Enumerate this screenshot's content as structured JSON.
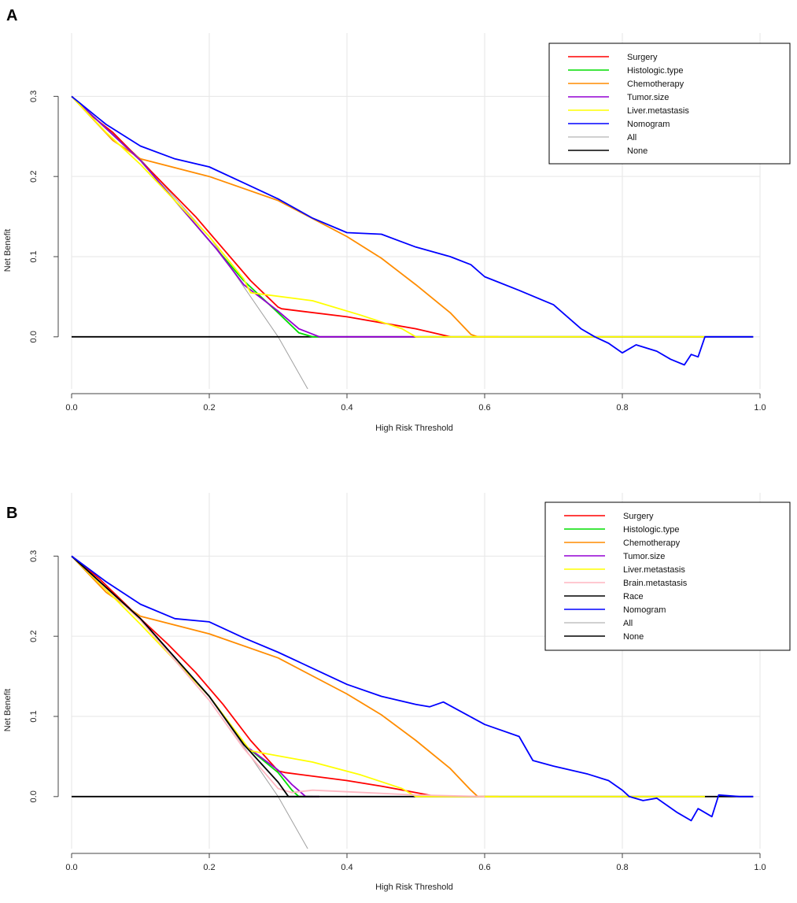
{
  "chart_data": [
    {
      "panel_label": "A",
      "type": "line",
      "title": "",
      "xlabel": "High Risk Threshold",
      "ylabel": "Net Benefit",
      "xlim": [
        0,
        1
      ],
      "ylim": [
        -0.065,
        0.32
      ],
      "x_ticks": [
        0.0,
        0.2,
        0.4,
        0.6,
        0.8,
        1.0
      ],
      "x_tick_labels": [
        "0.0",
        "0.2",
        "0.4",
        "0.6",
        "0.8",
        "1.0"
      ],
      "y_ticks": [
        0.0,
        0.1,
        0.2,
        0.3
      ],
      "y_tick_labels": [
        "0.0",
        "0.1",
        "0.2",
        "0.3"
      ],
      "grid": true,
      "legend_position": "top-right",
      "series": [
        {
          "name": "Surgery",
          "color": "#ff0000",
          "x": [
            0.0,
            0.03,
            0.06,
            0.1,
            0.14,
            0.18,
            0.22,
            0.26,
            0.3,
            0.305,
            0.4,
            0.5,
            0.55
          ],
          "y": [
            0.3,
            0.275,
            0.255,
            0.22,
            0.185,
            0.15,
            0.11,
            0.07,
            0.037,
            0.035,
            0.025,
            0.01,
            0.0
          ]
        },
        {
          "name": "Histologic.type",
          "color": "#00dd00",
          "x": [
            0.0,
            0.1,
            0.21,
            0.25,
            0.3,
            0.33,
            0.35,
            0.36
          ],
          "y": [
            0.3,
            0.22,
            0.11,
            0.07,
            0.03,
            0.005,
            0.0,
            0.0
          ]
        },
        {
          "name": "Chemotherapy",
          "color": "#ff8c00",
          "x": [
            0.0,
            0.06,
            0.1,
            0.2,
            0.3,
            0.4,
            0.45,
            0.5,
            0.55,
            0.58,
            0.59,
            0.62
          ],
          "y": [
            0.3,
            0.245,
            0.222,
            0.2,
            0.17,
            0.125,
            0.098,
            0.065,
            0.03,
            0.003,
            0.0,
            0.0
          ]
        },
        {
          "name": "Tumor.size",
          "color": "#9400d3",
          "x": [
            0.0,
            0.1,
            0.21,
            0.25,
            0.3,
            0.33,
            0.36,
            0.5
          ],
          "y": [
            0.3,
            0.22,
            0.11,
            0.065,
            0.032,
            0.01,
            0.0,
            0.0
          ]
        },
        {
          "name": "Liver.metastasis",
          "color": "#ffff00",
          "x": [
            0.0,
            0.05,
            0.1,
            0.15,
            0.2,
            0.25,
            0.26,
            0.35,
            0.42,
            0.48,
            0.5,
            0.6,
            0.7,
            0.8,
            0.92
          ],
          "y": [
            0.3,
            0.255,
            0.215,
            0.17,
            0.125,
            0.072,
            0.055,
            0.045,
            0.027,
            0.01,
            0.0,
            0.0,
            0.0,
            0.0,
            0.0
          ]
        },
        {
          "name": "Nomogram",
          "color": "#0000ff",
          "x": [
            0.0,
            0.05,
            0.1,
            0.15,
            0.2,
            0.25,
            0.3,
            0.35,
            0.4,
            0.45,
            0.5,
            0.55,
            0.58,
            0.6,
            0.65,
            0.7,
            0.74,
            0.76,
            0.78,
            0.8,
            0.82,
            0.85,
            0.87,
            0.89,
            0.9,
            0.91,
            0.92,
            0.95,
            0.99
          ],
          "y": [
            0.3,
            0.265,
            0.238,
            0.222,
            0.212,
            0.192,
            0.172,
            0.148,
            0.13,
            0.128,
            0.112,
            0.1,
            0.09,
            0.075,
            0.058,
            0.04,
            0.01,
            0.0,
            -0.008,
            -0.02,
            -0.01,
            -0.018,
            -0.028,
            -0.035,
            -0.022,
            -0.025,
            0.0,
            0.0,
            0.0
          ]
        },
        {
          "name": "All",
          "color": "#a0a0a0",
          "x": [
            0.0,
            0.1,
            0.2,
            0.3,
            0.343
          ],
          "y": [
            0.3,
            0.222,
            0.125,
            0.0,
            -0.065
          ]
        },
        {
          "name": "None",
          "color": "#000000",
          "x": [
            0.0,
            0.99
          ],
          "y": [
            0.0,
            0.0
          ]
        }
      ]
    },
    {
      "panel_label": "B",
      "type": "line",
      "title": "",
      "xlabel": "High Risk Threshold",
      "ylabel": "Net Benefit",
      "xlim": [
        0,
        1
      ],
      "ylim": [
        -0.065,
        0.32
      ],
      "x_ticks": [
        0.0,
        0.2,
        0.4,
        0.6,
        0.8,
        1.0
      ],
      "x_tick_labels": [
        "0.0",
        "0.2",
        "0.4",
        "0.6",
        "0.8",
        "1.0"
      ],
      "y_ticks": [
        0.0,
        0.1,
        0.2,
        0.3
      ],
      "y_tick_labels": [
        "0.0",
        "0.1",
        "0.2",
        "0.3"
      ],
      "grid": true,
      "legend_position": "top-right",
      "series": [
        {
          "name": "Surgery",
          "color": "#ff0000",
          "x": [
            0.0,
            0.04,
            0.1,
            0.14,
            0.18,
            0.22,
            0.26,
            0.3,
            0.31,
            0.4,
            0.45,
            0.5,
            0.53
          ],
          "y": [
            0.3,
            0.272,
            0.222,
            0.19,
            0.155,
            0.115,
            0.07,
            0.032,
            0.03,
            0.02,
            0.013,
            0.005,
            0.0
          ]
        },
        {
          "name": "Histologic.type",
          "color": "#00dd00",
          "x": [
            0.0,
            0.1,
            0.2,
            0.25,
            0.3,
            0.32,
            0.33,
            0.35
          ],
          "y": [
            0.3,
            0.222,
            0.125,
            0.065,
            0.03,
            0.008,
            0.0,
            0.0
          ]
        },
        {
          "name": "Chemotherapy",
          "color": "#ff8c00",
          "x": [
            0.0,
            0.05,
            0.1,
            0.2,
            0.3,
            0.4,
            0.45,
            0.5,
            0.55,
            0.58,
            0.59,
            0.62
          ],
          "y": [
            0.3,
            0.255,
            0.225,
            0.203,
            0.173,
            0.128,
            0.102,
            0.07,
            0.035,
            0.008,
            0.0,
            0.0
          ]
        },
        {
          "name": "Tumor.size",
          "color": "#9400d3",
          "x": [
            0.0,
            0.1,
            0.2,
            0.25,
            0.3,
            0.32,
            0.34,
            0.36
          ],
          "y": [
            0.3,
            0.222,
            0.125,
            0.065,
            0.033,
            0.015,
            0.0,
            0.0
          ]
        },
        {
          "name": "Liver.metastasis",
          "color": "#ffff00",
          "x": [
            0.0,
            0.05,
            0.1,
            0.15,
            0.2,
            0.25,
            0.26,
            0.35,
            0.42,
            0.48,
            0.5,
            0.6,
            0.7,
            0.8,
            0.92
          ],
          "y": [
            0.3,
            0.258,
            0.215,
            0.17,
            0.125,
            0.068,
            0.057,
            0.043,
            0.027,
            0.01,
            0.0,
            0.0,
            0.0,
            0.0,
            0.0
          ]
        },
        {
          "name": "Brain.metastasis",
          "color": "#ffb6c1",
          "x": [
            0.0,
            0.1,
            0.2,
            0.25,
            0.3,
            0.32,
            0.35,
            0.4,
            0.5,
            0.6
          ],
          "y": [
            0.3,
            0.22,
            0.12,
            0.06,
            0.01,
            0.005,
            0.008,
            0.006,
            0.002,
            0.0
          ]
        },
        {
          "name": "Race",
          "color": "#000000",
          "x": [
            0.0,
            0.1,
            0.2,
            0.25,
            0.3,
            0.315,
            0.32,
            0.36
          ],
          "y": [
            0.3,
            0.222,
            0.125,
            0.065,
            0.018,
            0.0,
            0.0,
            0.0
          ]
        },
        {
          "name": "Nomogram",
          "color": "#0000ff",
          "x": [
            0.0,
            0.05,
            0.1,
            0.15,
            0.2,
            0.25,
            0.3,
            0.35,
            0.4,
            0.45,
            0.5,
            0.52,
            0.54,
            0.6,
            0.65,
            0.67,
            0.7,
            0.75,
            0.78,
            0.8,
            0.81,
            0.83,
            0.85,
            0.88,
            0.9,
            0.91,
            0.93,
            0.94,
            0.97,
            0.99
          ],
          "y": [
            0.3,
            0.268,
            0.24,
            0.222,
            0.218,
            0.198,
            0.18,
            0.16,
            0.14,
            0.125,
            0.115,
            0.112,
            0.118,
            0.09,
            0.075,
            0.045,
            0.038,
            0.028,
            0.02,
            0.008,
            0.0,
            -0.005,
            -0.002,
            -0.02,
            -0.03,
            -0.015,
            -0.025,
            0.002,
            0.0,
            0.0
          ]
        },
        {
          "name": "All",
          "color": "#a0a0a0",
          "x": [
            0.0,
            0.1,
            0.2,
            0.3,
            0.343
          ],
          "y": [
            0.3,
            0.222,
            0.125,
            0.0,
            -0.065
          ]
        },
        {
          "name": "None",
          "color": "#000000",
          "x": [
            0.0,
            0.99
          ],
          "y": [
            0.0,
            0.0
          ]
        }
      ]
    }
  ]
}
